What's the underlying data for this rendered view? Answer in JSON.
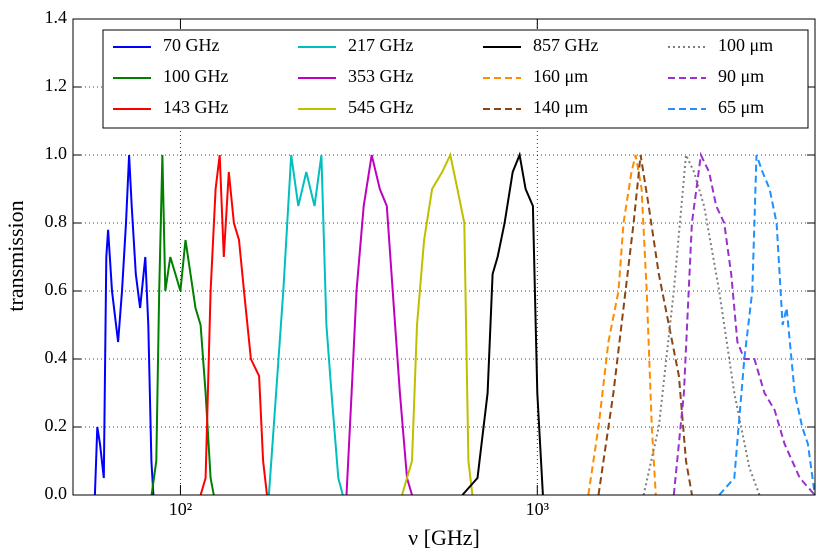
{
  "chart_data": {
    "type": "line",
    "xlabel": "ν [GHz]",
    "ylabel": "transmission",
    "xscale": "log",
    "grid": true,
    "legend": "top",
    "xlim": [
      50,
      6000
    ],
    "ylim": [
      0,
      1.4
    ],
    "xticks": [
      {
        "value": 100,
        "label": "10²"
      },
      {
        "value": 1000,
        "label": "10³"
      }
    ],
    "yticks": [
      {
        "value": 0,
        "label": "0.0"
      },
      {
        "value": 0.2,
        "label": "0.2"
      },
      {
        "value": 0.4,
        "label": "0.4"
      },
      {
        "value": 0.6,
        "label": "0.6"
      },
      {
        "value": 0.8,
        "label": "0.8"
      },
      {
        "value": 1,
        "label": "1.0"
      },
      {
        "value": 1.2,
        "label": "1.2"
      },
      {
        "value": 1.4,
        "label": "1.4"
      }
    ],
    "series": [
      {
        "name": "70 GHz",
        "color": "#0000ff",
        "linestyle": "solid",
        "x": [
          57.6,
          58.5,
          59.5,
          61,
          62,
          62.7,
          64.3,
          66.9,
          68.6,
          70.4,
          71.8,
          73,
          75,
          77.1,
          79.7,
          81.3,
          82.9,
          84
        ],
        "values": [
          0,
          0.2,
          0.15,
          0.05,
          0.7,
          0.78,
          0.6,
          0.45,
          0.6,
          0.8,
          1.0,
          0.85,
          0.65,
          0.55,
          0.7,
          0.5,
          0.1,
          0
        ]
      },
      {
        "name": "100 GHz",
        "color": "#008000",
        "linestyle": "solid",
        "x": [
          83,
          85.6,
          87.2,
          89,
          90.7,
          93.7,
          96.8,
          100,
          103.3,
          106.7,
          110.2,
          113.9,
          117.6,
          121.5,
          124
        ],
        "values": [
          0,
          0.1,
          0.6,
          1.0,
          0.6,
          0.7,
          0.65,
          0.6,
          0.75,
          0.65,
          0.55,
          0.5,
          0.3,
          0.05,
          0
        ]
      },
      {
        "name": "143 GHz",
        "color": "#ff0000",
        "linestyle": "solid",
        "x": [
          113.9,
          117.6,
          121.5,
          125.5,
          128.8,
          132.3,
          136.6,
          141.2,
          145.9,
          150.7,
          157.6,
          166.1,
          170.5,
          174.8
        ],
        "values": [
          0,
          0.05,
          0.6,
          0.9,
          1.0,
          0.7,
          0.95,
          0.8,
          0.75,
          0.6,
          0.4,
          0.35,
          0.1,
          0
        ]
      },
      {
        "name": "217 GHz",
        "color": "#00bfbf",
        "linestyle": "solid",
        "x": [
          177,
          185.4,
          194.2,
          204.3,
          214,
          225.2,
          237.5,
          248.3,
          256.5,
          265,
          277,
          285
        ],
        "values": [
          0,
          0.3,
          0.6,
          1.0,
          0.85,
          0.95,
          0.85,
          1.0,
          0.5,
          0.3,
          0.05,
          0
        ]
      },
      {
        "name": "353 GHz",
        "color": "#bf00bf",
        "linestyle": "solid",
        "x": [
          292,
          301.7,
          311.4,
          326.3,
          343.6,
          362,
          378.8,
          396.5,
          412.2,
          431.5,
          445.6
        ],
        "values": [
          0,
          0.3,
          0.6,
          0.85,
          1.0,
          0.9,
          0.85,
          0.55,
          0.3,
          0.05,
          0
        ]
      },
      {
        "name": "545 GHz",
        "color": "#bfbf00",
        "linestyle": "solid",
        "x": [
          417.6,
          445.6,
          460.3,
          481.8,
          507.4,
          541.5,
          570.4,
          597,
          624.5,
          641,
          658
        ],
        "values": [
          0,
          0.1,
          0.5,
          0.75,
          0.9,
          0.95,
          1.0,
          0.9,
          0.8,
          0.1,
          0
        ]
      },
      {
        "name": "857 GHz",
        "color": "#000000",
        "linestyle": "solid",
        "x": [
          616.6,
          680,
          725.5,
          749.3,
          774,
          810,
          853.3,
          892,
          927,
          971.7,
          1000,
          1037
        ],
        "values": [
          0,
          0.05,
          0.3,
          0.65,
          0.7,
          0.8,
          0.95,
          1.0,
          0.9,
          0.85,
          0.3,
          0
        ]
      },
      {
        "name": "160 μm",
        "color": "#ff8c00",
        "linestyle": "dashed",
        "x": [
          1390,
          1484,
          1582,
          1689,
          1744,
          1836,
          1886,
          1960,
          2025,
          2093,
          2148
        ],
        "values": [
          0,
          0.2,
          0.45,
          0.6,
          0.8,
          0.95,
          1.0,
          0.9,
          0.6,
          0.2,
          0
        ]
      },
      {
        "name": "140 μm",
        "color": "#8b4513",
        "linestyle": "dashed",
        "x": [
          1484,
          1634,
          1744,
          1861,
          1948,
          2052,
          2190,
          2337,
          2494,
          2610,
          2713
        ],
        "values": [
          0,
          0.3,
          0.55,
          0.8,
          1.0,
          0.85,
          0.65,
          0.5,
          0.35,
          0.1,
          0
        ]
      },
      {
        "name": "100 μm",
        "color": "#808080",
        "linestyle": "dotted",
        "x": [
          1986,
          2190,
          2413,
          2610,
          2748,
          2933,
          3234,
          3564,
          3930,
          4194
        ],
        "values": [
          0,
          0.2,
          0.6,
          1.0,
          0.95,
          0.85,
          0.6,
          0.3,
          0.08,
          0
        ]
      },
      {
        "name": "90 μm",
        "color": "#9932cc",
        "linestyle": "dashed",
        "x": [
          2413,
          2575,
          2712,
          2874,
          3030,
          3172,
          3340,
          3494,
          3636,
          3803,
          4059,
          4331,
          4622,
          4932,
          5440,
          5994
        ],
        "values": [
          0,
          0.3,
          0.8,
          1.0,
          0.95,
          0.85,
          0.8,
          0.65,
          0.45,
          0.4,
          0.4,
          0.3,
          0.25,
          0.15,
          0.05,
          0
        ]
      },
      {
        "name": "65 μm",
        "color": "#1e90ff",
        "linestyle": "dashed",
        "x": [
          3234,
          3564,
          3803,
          4004,
          4114,
          4277,
          4476,
          4684,
          4869,
          4995,
          5263,
          5524,
          5731,
          5994
        ],
        "values": [
          0,
          0.05,
          0.4,
          0.6,
          1.0,
          0.95,
          0.9,
          0.8,
          0.5,
          0.55,
          0.3,
          0.2,
          0.15,
          0
        ]
      }
    ]
  }
}
